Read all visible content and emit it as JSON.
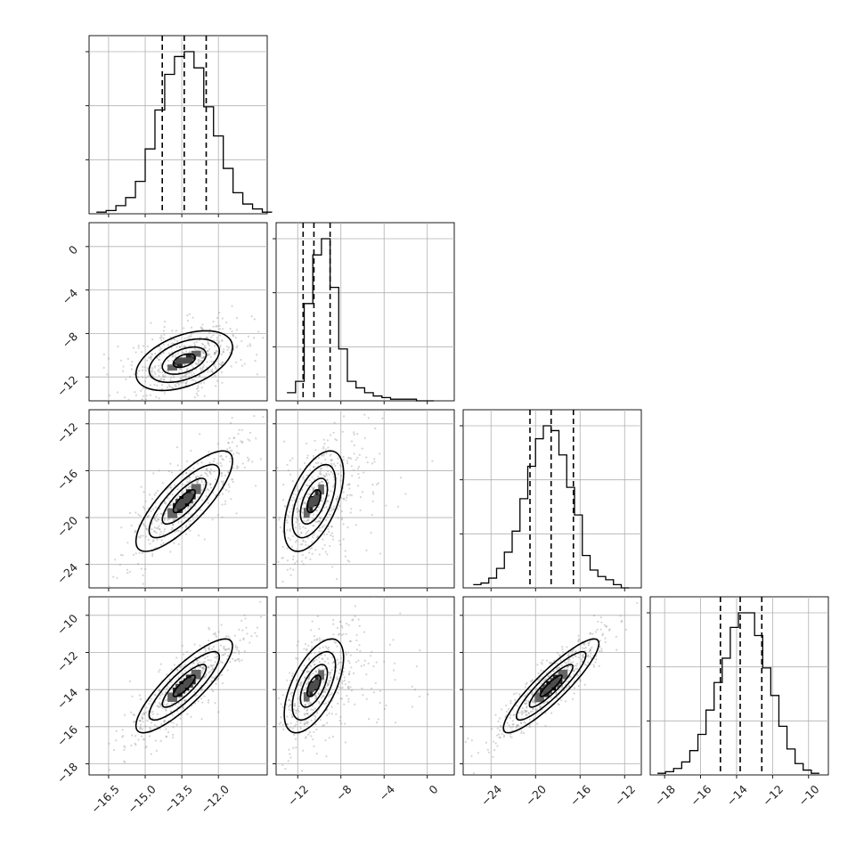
{
  "chart_data": {
    "type": "corner",
    "parameters": [
      {
        "range": [
          -17.3,
          -10.0
        ],
        "ticks": [
          -16.5,
          -15.0,
          -13.5,
          -12.0
        ],
        "tick_labels": [
          "−16.5",
          "−15.0",
          "−13.5",
          "−12.0"
        ],
        "quantiles": [
          -14.3,
          -13.4,
          -12.5
        ],
        "hist_bins": [
          -17.0,
          -16.6,
          -16.2,
          -15.8,
          -15.4,
          -15.0,
          -14.6,
          -14.2,
          -13.8,
          -13.4,
          -13.0,
          -12.6,
          -12.2,
          -11.8,
          -11.4,
          -11.0,
          -10.6,
          -10.2
        ],
        "hist_counts": [
          1,
          2,
          5,
          10,
          20,
          40,
          64,
          86,
          97,
          100,
          90,
          66,
          48,
          28,
          13,
          6,
          3,
          1
        ]
      },
      {
        "range": [
          -14.0,
          2.5
        ],
        "ticks": [
          -12,
          -8,
          -4,
          0
        ],
        "tick_labels": [
          "−12",
          "−8",
          "−4",
          "0"
        ],
        "quantiles": [
          -11.5,
          -10.5,
          -9.0
        ],
        "hist_bins": [
          -13.0,
          -12.2,
          -11.4,
          -10.6,
          -9.8,
          -9.0,
          -8.2,
          -7.4,
          -6.6,
          -5.8,
          -5.0,
          -4.2,
          -3.4,
          -2.6,
          -1.8,
          -1.0,
          -0.2
        ],
        "hist_counts": [
          5,
          12,
          60,
          90,
          100,
          70,
          32,
          12,
          8,
          5,
          3,
          2,
          1,
          1,
          1,
          0,
          0
        ]
      },
      {
        "range": [
          -26.5,
          -10.5
        ],
        "ticks": [
          -24,
          -20,
          -16,
          -12
        ],
        "tick_labels": [
          "−24",
          "−20",
          "−16",
          "−12"
        ],
        "quantiles": [
          -20.5,
          -18.6,
          -16.6
        ],
        "hist_bins": [
          -25.6,
          -24.9,
          -24.2,
          -23.5,
          -22.8,
          -22.1,
          -21.4,
          -20.7,
          -20.0,
          -19.3,
          -18.6,
          -17.9,
          -17.2,
          -16.5,
          -15.8,
          -15.1,
          -14.4,
          -13.7,
          -13.0,
          -12.3
        ],
        "hist_counts": [
          2,
          3,
          6,
          12,
          22,
          35,
          55,
          75,
          92,
          100,
          97,
          82,
          62,
          45,
          20,
          11,
          7,
          5,
          2,
          0
        ]
      },
      {
        "range": [
          -18.8,
          -8.9
        ],
        "ticks": [
          -18,
          -16,
          -14,
          -12,
          -10
        ],
        "tick_labels": [
          "−18",
          "−16",
          "−14",
          "−12",
          "−10"
        ],
        "quantiles": [
          -14.9,
          -13.8,
          -12.6
        ],
        "hist_bins": [
          -18.4,
          -17.95,
          -17.5,
          -17.05,
          -16.6,
          -16.15,
          -15.7,
          -15.25,
          -14.8,
          -14.35,
          -13.9,
          -13.45,
          -13.0,
          -12.55,
          -12.1,
          -11.65,
          -11.2,
          -10.75,
          -10.3,
          -9.85
        ],
        "hist_counts": [
          1,
          2,
          4,
          8,
          15,
          25,
          40,
          57,
          72,
          91,
          100,
          100,
          86,
          66,
          49,
          30,
          16,
          7,
          3,
          1
        ]
      }
    ],
    "y_axis_ranges": [
      null,
      [
        -14.2,
        2.2
      ],
      [
        -26.0,
        -10.8
      ],
      [
        -18.6,
        -9.0
      ]
    ],
    "grid": true,
    "legend": "none",
    "colors": {
      "line": "#000000",
      "scatter": "#888888",
      "grid": "#b0b0b0",
      "axis": "#000000",
      "text": "#222222"
    }
  }
}
